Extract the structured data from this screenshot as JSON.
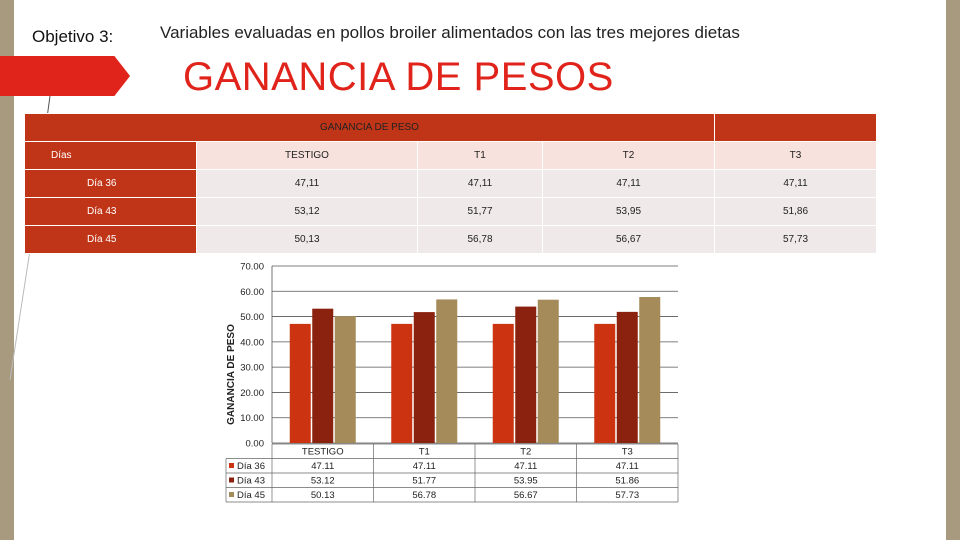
{
  "header": {
    "objective": "Objetivo 3:",
    "subtitle": "Variables evaluadas en pollos broiler alimentados con las tres mejores dietas",
    "heading": "GANANCIA DE PESOS"
  },
  "table": {
    "title": "GANANCIA DE PESO",
    "columns": [
      "Días",
      "TESTIGO",
      "T1",
      "T2",
      "T3"
    ],
    "rows": [
      {
        "label": "Día 36",
        "values": [
          "47,11",
          "47,11",
          "47,11",
          "47,11"
        ]
      },
      {
        "label": "Día 43",
        "values": [
          "53,12",
          "51,77",
          "53,95",
          "51,86"
        ]
      },
      {
        "label": "Día 45",
        "values": [
          "50,13",
          "56,78",
          "56,67",
          "57,73"
        ]
      }
    ]
  },
  "colors": {
    "accent": "#e0241b",
    "table_header": "#c03518",
    "dia36": "#cc3311",
    "dia43": "#8b2210",
    "dia45": "#a48b59"
  },
  "chart_data": {
    "type": "bar",
    "ylabel": "GANANCIA DE PESO",
    "ylim": [
      0,
      70
    ],
    "yticks": [
      "0.00",
      "10.00",
      "20.00",
      "30.00",
      "40.00",
      "50.00",
      "60.00",
      "70.00"
    ],
    "categories": [
      "TESTIGO",
      "T1",
      "T2",
      "T3"
    ],
    "grid": true,
    "legend": "bottom-left (data table)",
    "series": [
      {
        "name": "Día 36",
        "color": "#cc3311",
        "values": [
          47.11,
          47.11,
          47.11,
          47.11
        ],
        "labels": [
          "47.11",
          "47.11",
          "47.11",
          "47.11"
        ]
      },
      {
        "name": "Día 43",
        "color": "#8b2210",
        "values": [
          53.12,
          51.77,
          53.95,
          51.86
        ],
        "labels": [
          "53.12",
          "51.77",
          "53.95",
          "51.86"
        ]
      },
      {
        "name": "Día 45",
        "color": "#a48b59",
        "values": [
          50.13,
          56.78,
          56.67,
          57.73
        ],
        "labels": [
          "50.13",
          "56.78",
          "56.67",
          "57.73"
        ]
      }
    ]
  }
}
